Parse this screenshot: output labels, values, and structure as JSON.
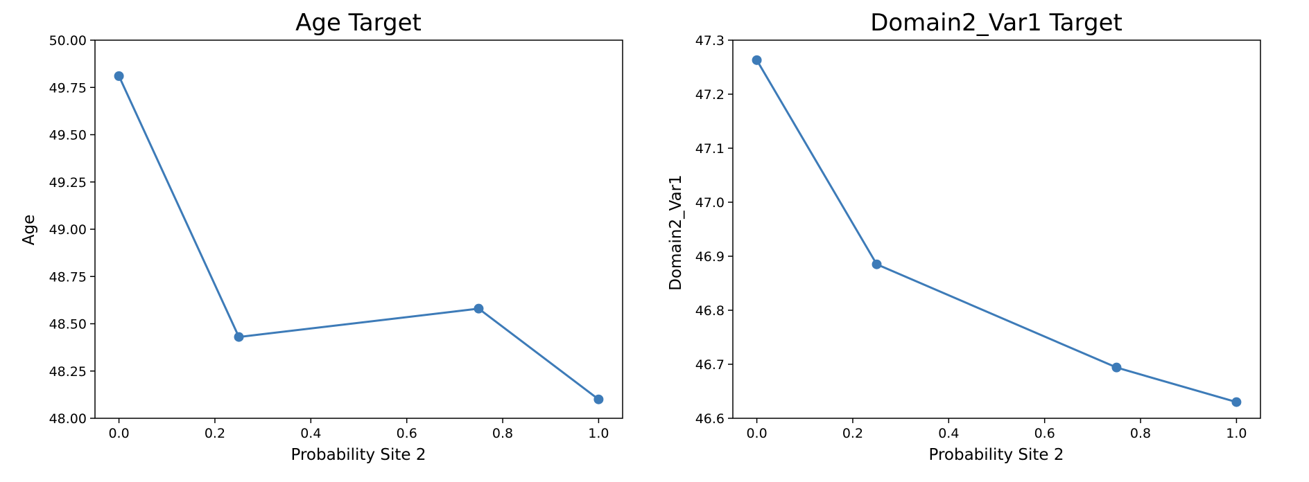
{
  "colors": {
    "series": "#3d7bb8",
    "axes": "#000000",
    "background": "#ffffff"
  },
  "chart_data": [
    {
      "type": "line",
      "title": "Age Target",
      "xlabel": "Probability Site 2",
      "ylabel": "Age",
      "x": [
        0.0,
        0.25,
        0.75,
        1.0
      ],
      "series": [
        {
          "values": [
            49.81,
            48.43,
            48.58,
            48.1
          ]
        }
      ],
      "xlim": [
        -0.05,
        1.05
      ],
      "ylim": [
        48.0,
        50.0
      ],
      "xticks": [
        0.0,
        0.2,
        0.4,
        0.6,
        0.8,
        1.0
      ],
      "xtick_labels": [
        "0.0",
        "0.2",
        "0.4",
        "0.6",
        "0.8",
        "1.0"
      ],
      "yticks": [
        48.0,
        48.25,
        48.5,
        48.75,
        49.0,
        49.25,
        49.5,
        49.75,
        50.0
      ],
      "ytick_labels": [
        "48.00",
        "48.25",
        "48.50",
        "48.75",
        "49.00",
        "49.25",
        "49.50",
        "49.75",
        "50.00"
      ],
      "grid": false,
      "markers": true
    },
    {
      "type": "line",
      "title": "Domain2_Var1 Target",
      "xlabel": "Probability Site 2",
      "ylabel": "Domain2_Var1",
      "x": [
        0.0,
        0.25,
        0.75,
        1.0
      ],
      "series": [
        {
          "values": [
            47.263,
            46.885,
            46.694,
            46.63
          ]
        }
      ],
      "xlim": [
        -0.05,
        1.05
      ],
      "ylim": [
        46.6,
        47.3
      ],
      "xticks": [
        0.0,
        0.2,
        0.4,
        0.6,
        0.8,
        1.0
      ],
      "xtick_labels": [
        "0.0",
        "0.2",
        "0.4",
        "0.6",
        "0.8",
        "1.0"
      ],
      "yticks": [
        46.6,
        46.7,
        46.8,
        46.9,
        47.0,
        47.1,
        47.2,
        47.3
      ],
      "ytick_labels": [
        "46.6",
        "46.7",
        "46.8",
        "46.9",
        "47.0",
        "47.1",
        "47.2",
        "47.3"
      ],
      "grid": false,
      "markers": true
    }
  ]
}
